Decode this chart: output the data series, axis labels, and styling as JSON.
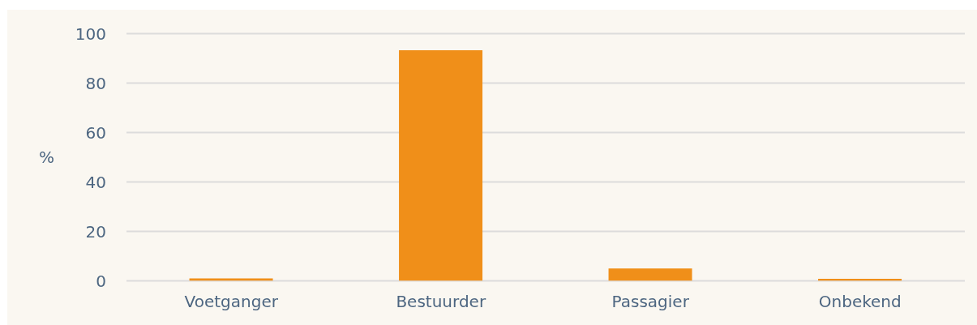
{
  "chart_data": {
    "type": "bar",
    "ylabel": "%",
    "categories": [
      "Voetganger",
      "Bestuurder",
      "Passagier",
      "Onbekend"
    ],
    "values": [
      1.0,
      93.3,
      5.0,
      0.8
    ],
    "color": "#f08f19",
    "ylim": [
      0,
      100
    ],
    "yticks": [
      0,
      20,
      40,
      60,
      80,
      100
    ],
    "grid": "y"
  }
}
